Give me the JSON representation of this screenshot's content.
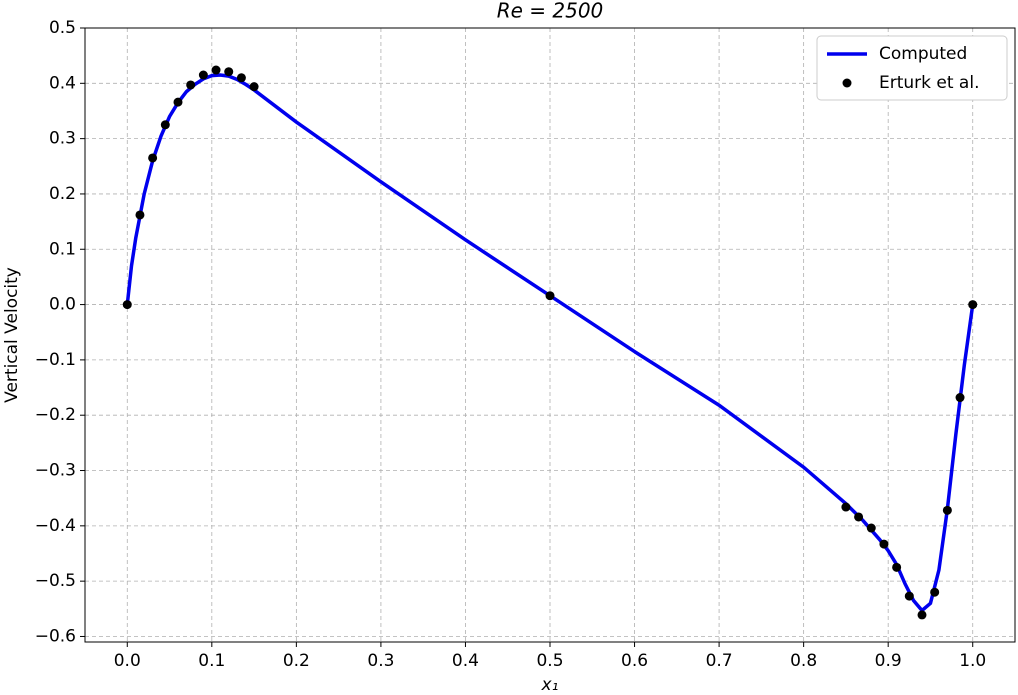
{
  "chart_data": {
    "type": "line",
    "title": "Re = 2500",
    "xlabel": "x₁",
    "ylabel": "Vertical Velocity",
    "xlim": [
      -0.05,
      1.05
    ],
    "ylim": [
      -0.61,
      0.5
    ],
    "xticks": [
      {
        "value": 0,
        "label": "0.0"
      },
      0.1,
      0.2,
      0.3,
      0.4,
      0.5,
      0.6,
      0.7,
      0.8,
      0.9,
      {
        "value": 1,
        "label": "1.0"
      }
    ],
    "yticks": [
      {
        "value": -0.6,
        "label": "−0.6"
      },
      {
        "value": -0.5,
        "label": "−0.5"
      },
      {
        "value": -0.4,
        "label": "−0.4"
      },
      {
        "value": -0.3,
        "label": "−0.3"
      },
      {
        "value": -0.2,
        "label": "−0.2"
      },
      {
        "value": -0.1,
        "label": "−0.1"
      },
      {
        "value": 0,
        "label": "0.0"
      },
      0.1,
      0.2,
      0.3,
      0.4,
      0.5
    ],
    "grid": true,
    "legend": "upper right",
    "series": [
      {
        "name": "Computed",
        "color": "#0000ee",
        "kind": "line",
        "x": [
          0,
          0.005,
          0.01,
          0.02,
          0.03,
          0.04,
          0.05,
          0.06,
          0.07,
          0.08,
          0.09,
          0.1,
          0.11,
          0.12,
          0.13,
          0.14,
          0.15,
          0.2,
          0.3,
          0.4,
          0.5,
          0.6,
          0.7,
          0.8,
          0.85,
          0.87,
          0.89,
          0.9,
          0.91,
          0.92,
          0.93,
          0.94,
          0.95,
          0.96,
          0.97,
          0.98,
          0.99,
          1.0
        ],
        "values": [
          0,
          0.07,
          0.12,
          0.2,
          0.26,
          0.305,
          0.34,
          0.365,
          0.385,
          0.398,
          0.408,
          0.414,
          0.415,
          0.413,
          0.407,
          0.398,
          0.388,
          0.33,
          0.222,
          0.117,
          0.016,
          -0.085,
          -0.182,
          -0.294,
          -0.36,
          -0.39,
          -0.425,
          -0.445,
          -0.47,
          -0.505,
          -0.535,
          -0.553,
          -0.54,
          -0.48,
          -0.37,
          -0.235,
          -0.11,
          0
        ]
      },
      {
        "name": "Erturk et al.",
        "color": "#000000",
        "kind": "scatter",
        "x": [
          0,
          0.015,
          0.03,
          0.045,
          0.06,
          0.075,
          0.09,
          0.105,
          0.12,
          0.135,
          0.15,
          0.5,
          0.85,
          0.865,
          0.88,
          0.895,
          0.91,
          0.925,
          0.94,
          0.955,
          0.97,
          0.985,
          1.0
        ],
        "values": [
          0,
          0.162,
          0.265,
          0.325,
          0.366,
          0.397,
          0.415,
          0.424,
          0.421,
          0.41,
          0.394,
          0.016,
          -0.366,
          -0.384,
          -0.404,
          -0.433,
          -0.475,
          -0.527,
          -0.561,
          -0.52,
          -0.372,
          -0.168,
          0
        ]
      }
    ]
  }
}
